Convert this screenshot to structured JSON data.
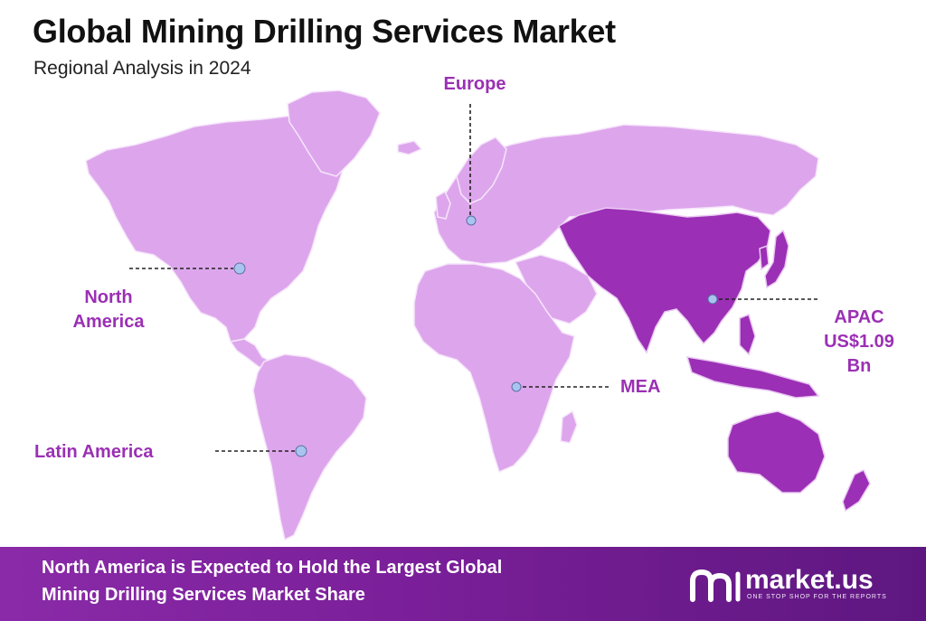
{
  "header": {
    "title": "Global Mining Drilling Services Market",
    "subtitle": "Regional Analysis in 2024"
  },
  "map": {
    "regions": [
      {
        "name": "North America",
        "lines": [
          "North",
          "America"
        ]
      },
      {
        "name": "Europe",
        "lines": [
          "Europe"
        ]
      },
      {
        "name": "MEA",
        "lines": [
          "MEA"
        ]
      },
      {
        "name": "APAC",
        "lines": [
          "APAC",
          "US$1.09",
          "Bn"
        ],
        "value": "US$1.09 Bn",
        "highlighted": true
      },
      {
        "name": "Latin America",
        "lines": [
          "Latin America"
        ]
      }
    ]
  },
  "banner": {
    "line1": "North America is Expected to Hold the Largest Global",
    "line2": "Mining Drilling Services Market Share"
  },
  "brand": {
    "name": "market.us",
    "tagline": "ONE STOP SHOP FOR THE REPORTS",
    "icon": "market-us-logo-icon"
  },
  "colors": {
    "land": "#dda6ec",
    "land_highlight": "#9b2fb5",
    "label": "#9b30b4",
    "marker": "#a9c4ee",
    "banner": "#7a1f99"
  }
}
